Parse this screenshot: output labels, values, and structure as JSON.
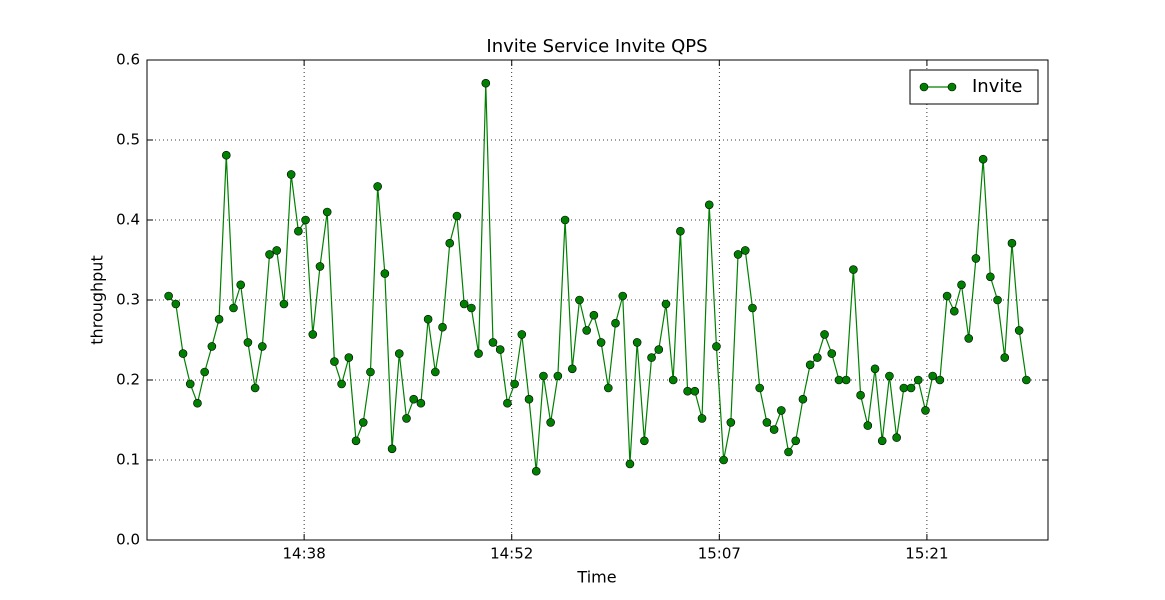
{
  "chart_data": {
    "type": "line",
    "title": "Invite Service Invite QPS",
    "x_label": "Time",
    "y_label": "throughput",
    "x": [
      869,
      869.5,
      870,
      870.5,
      871,
      871.5,
      872,
      872.5,
      873,
      873.5,
      874,
      874.5,
      875,
      875.5,
      876,
      876.5,
      877,
      877.5,
      878,
      878.5,
      879,
      879.5,
      880,
      880.5,
      881,
      881.5,
      882,
      882.5,
      883,
      883.5,
      884,
      884.5,
      885,
      885.5,
      886,
      886.5,
      887,
      887.5,
      888,
      888.5,
      889,
      889.5,
      890,
      890.5,
      891,
      891.5,
      892,
      892.5,
      893,
      893.5,
      894,
      894.5,
      895,
      895.5,
      896,
      896.5,
      897,
      897.5,
      898,
      898.5,
      899,
      899.5,
      900,
      900.5,
      901,
      901.5,
      902,
      902.5,
      903,
      903.5,
      904,
      904.5,
      905,
      905.5,
      906,
      906.5,
      907,
      907.5,
      908,
      908.5,
      909,
      909.5,
      910,
      910.5,
      911,
      911.5,
      912,
      912.5,
      913,
      913.5,
      914,
      914.5,
      915,
      915.5,
      916,
      916.5,
      917,
      917.5,
      918,
      918.5,
      919,
      919.5,
      920,
      920.5,
      921,
      921.5,
      922,
      922.5,
      923,
      923.5,
      924,
      924.5,
      925,
      925.5,
      926,
      926.5,
      927,
      927.5,
      928,
      928.5
    ],
    "series": [
      {
        "name": "Invite",
        "color": "#008000",
        "values": [
          0.305,
          0.295,
          0.233,
          0.195,
          0.171,
          0.21,
          0.242,
          0.276,
          0.481,
          0.29,
          0.319,
          0.247,
          0.19,
          0.242,
          0.357,
          0.362,
          0.295,
          0.457,
          0.386,
          0.4,
          0.257,
          0.342,
          0.41,
          0.223,
          0.195,
          0.228,
          0.124,
          0.147,
          0.21,
          0.442,
          0.333,
          0.114,
          0.233,
          0.152,
          0.176,
          0.171,
          0.276,
          0.21,
          0.266,
          0.371,
          0.405,
          0.295,
          0.29,
          0.233,
          0.571,
          0.247,
          0.238,
          0.171,
          0.195,
          0.257,
          0.176,
          0.086,
          0.205,
          0.147,
          0.205,
          0.4,
          0.214,
          0.3,
          0.262,
          0.281,
          0.247,
          0.19,
          0.271,
          0.305,
          0.095,
          0.247,
          0.124,
          0.228,
          0.238,
          0.295,
          0.2,
          0.386,
          0.186,
          0.186,
          0.152,
          0.419,
          0.242,
          0.1,
          0.147,
          0.357,
          0.362,
          0.29,
          0.19,
          0.147,
          0.138,
          0.162,
          0.11,
          0.124,
          0.176,
          0.219,
          0.228,
          0.257,
          0.233,
          0.2,
          0.2,
          0.338,
          0.181,
          0.143,
          0.214,
          0.124,
          0.205,
          0.128,
          0.19,
          0.19,
          0.2,
          0.162,
          0.205,
          0.2,
          0.305,
          0.286,
          0.319,
          0.252,
          0.352,
          0.476,
          0.329,
          0.3,
          0.228,
          0.371,
          0.262,
          0.2
        ]
      }
    ],
    "xlim": [
      867.5,
      930
    ],
    "xticks": [
      {
        "value": 878.4,
        "label": "14:38"
      },
      {
        "value": 892.8,
        "label": "14:52"
      },
      {
        "value": 907.2,
        "label": "15:07"
      },
      {
        "value": 921.6,
        "label": "15:21"
      }
    ],
    "ylim": [
      0,
      0.6
    ],
    "yticks": [
      {
        "value": 0,
        "label": "0.0"
      },
      0.1,
      0.2,
      0.3,
      0.4,
      0.5,
      0.6
    ],
    "grid": true,
    "legend": "upper right"
  }
}
